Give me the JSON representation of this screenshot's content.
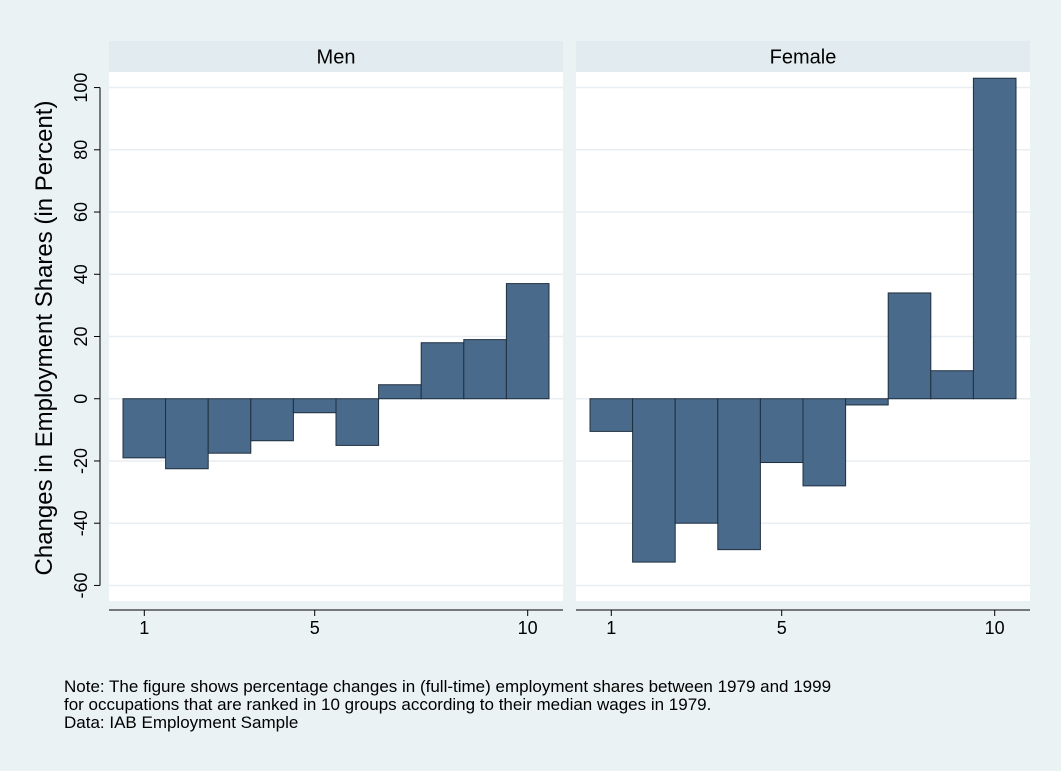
{
  "chart_data": {
    "type": "bar",
    "ylabel": "Changes in Employment Shares (in Percent)",
    "ylim": [
      -65,
      105
    ],
    "y_ticks": [
      -60,
      -40,
      -20,
      0,
      20,
      40,
      60,
      80,
      100
    ],
    "x_ticks": [
      1,
      5,
      10
    ],
    "grid": true,
    "colors": {
      "bar": "#4a6a8c",
      "bar_edge": "#1f2f3f",
      "panel": "#ffffff",
      "strip": "#e2ebef",
      "background": "#eaf2f3",
      "grid": "#e8eef1"
    },
    "panels": [
      {
        "title": "Men",
        "x": [
          1,
          2,
          3,
          4,
          5,
          6,
          7,
          8,
          9,
          10
        ],
        "values": [
          -19,
          -22.5,
          -17.5,
          -13.5,
          -4.5,
          -15,
          4.5,
          18,
          19,
          37
        ]
      },
      {
        "title": "Female",
        "x": [
          1,
          2,
          3,
          4,
          5,
          6,
          7,
          8,
          9,
          10
        ],
        "values": [
          -10.5,
          -52.5,
          -40,
          -48.5,
          -20.5,
          -28,
          -2,
          34,
          9,
          103
        ]
      }
    ]
  },
  "notes": [
    "Note: The figure shows percentage changes in (full-time) employment shares between 1979 and 1999",
    "for occupations that are ranked in 10 groups according to their median wages in 1979.",
    "Data: IAB Employment Sample"
  ]
}
